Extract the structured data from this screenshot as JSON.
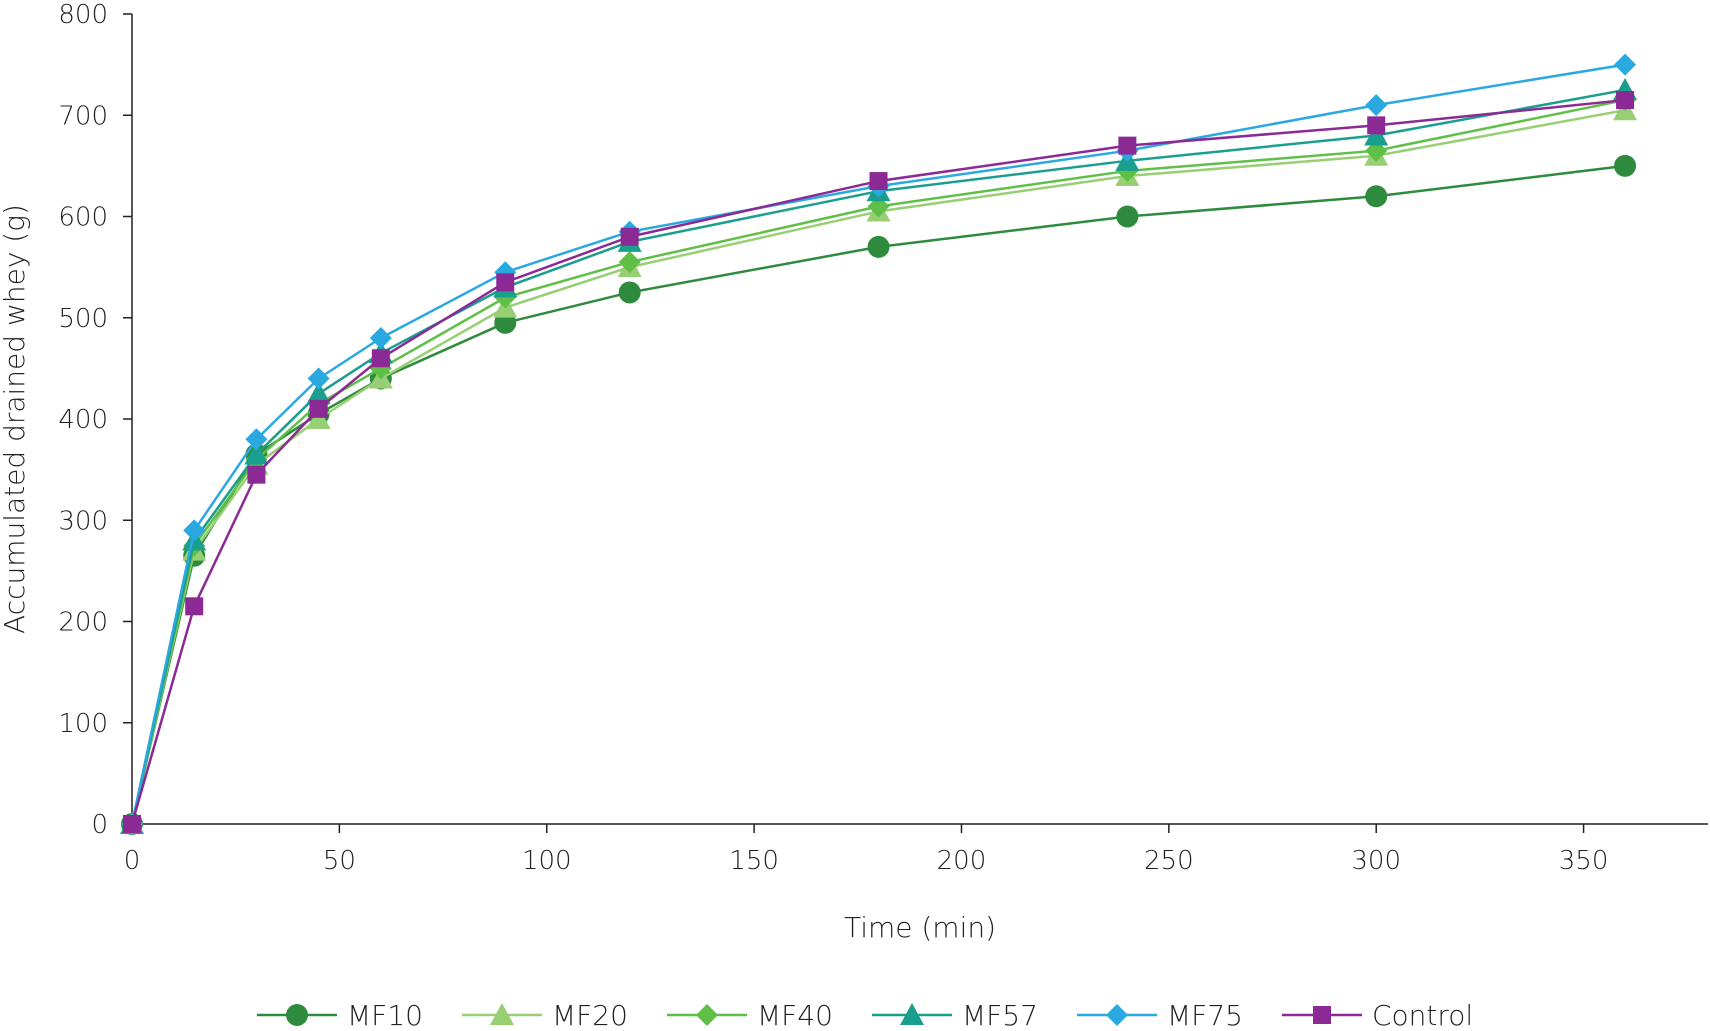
{
  "chart_data": {
    "type": "line",
    "title": "",
    "xlabel": "Time (min)",
    "ylabel": "Accumulated drained whey (g)",
    "xlim": [
      0,
      380
    ],
    "ylim": [
      0,
      800
    ],
    "xticks": [
      0,
      50,
      100,
      150,
      200,
      250,
      300,
      350
    ],
    "yticks": [
      0,
      100,
      200,
      300,
      400,
      500,
      600,
      700,
      800
    ],
    "grid": false,
    "legend_position": "bottom",
    "x": [
      0,
      15,
      30,
      45,
      60,
      90,
      120,
      180,
      240,
      300,
      360
    ],
    "series": [
      {
        "name": "MF10",
        "color": "#2e8b3e",
        "marker": "circle",
        "values": [
          0,
          265,
          365,
          405,
          440,
          495,
          525,
          570,
          600,
          620,
          650
        ]
      },
      {
        "name": "MF20",
        "color": "#98cf74",
        "marker": "triangle",
        "values": [
          0,
          270,
          355,
          400,
          440,
          510,
          550,
          605,
          640,
          660,
          705
        ]
      },
      {
        "name": "MF40",
        "color": "#5fbf47",
        "marker": "diamond",
        "values": [
          0,
          275,
          360,
          415,
          450,
          520,
          555,
          610,
          645,
          665,
          715
        ]
      },
      {
        "name": "MF57",
        "color": "#1a9e8e",
        "marker": "triangle",
        "values": [
          0,
          280,
          365,
          425,
          465,
          530,
          575,
          625,
          655,
          680,
          725
        ]
      },
      {
        "name": "MF75",
        "color": "#2aa8e0",
        "marker": "diamond",
        "values": [
          0,
          290,
          380,
          440,
          480,
          545,
          585,
          630,
          665,
          710,
          750
        ]
      },
      {
        "name": "Control",
        "color": "#8b2a94",
        "marker": "square",
        "values": [
          0,
          215,
          345,
          410,
          460,
          535,
          580,
          635,
          670,
          690,
          715
        ]
      }
    ]
  }
}
